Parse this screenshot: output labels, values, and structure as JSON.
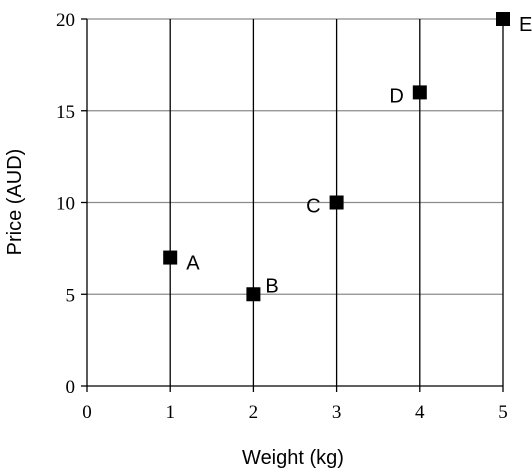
{
  "chart_data": {
    "type": "scatter",
    "title": "",
    "xlabel": "Weight (kg)",
    "ylabel": "Price (AUD)",
    "xlim": [
      0,
      5
    ],
    "ylim": [
      0,
      20
    ],
    "xticks": [
      "0",
      "1",
      "2",
      "3",
      "4",
      "5"
    ],
    "yticks": [
      "0",
      "5",
      "10",
      "15",
      "20"
    ],
    "grid": "vertical and horizontal",
    "marker": "square",
    "marker_color": "#000000",
    "points": [
      {
        "label": "A",
        "x": 1,
        "y": 7,
        "label_side": "right"
      },
      {
        "label": "B",
        "x": 2,
        "y": 5,
        "label_side": "upper-right"
      },
      {
        "label": "C",
        "x": 3,
        "y": 10,
        "label_side": "left"
      },
      {
        "label": "D",
        "x": 4,
        "y": 16,
        "label_side": "left"
      },
      {
        "label": "E",
        "x": 5,
        "y": 20,
        "label_side": "right"
      }
    ]
  }
}
